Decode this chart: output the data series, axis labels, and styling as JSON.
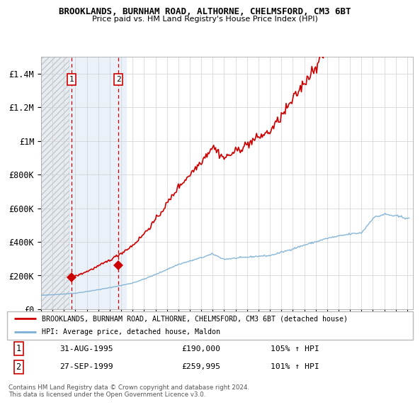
{
  "title1": "BROOKLANDS, BURNHAM ROAD, ALTHORNE, CHELMSFORD, CM3 6BT",
  "title2": "Price paid vs. HM Land Registry's House Price Index (HPI)",
  "ylim": [
    0,
    1500000
  ],
  "yticks": [
    0,
    200000,
    400000,
    600000,
    800000,
    1000000,
    1200000,
    1400000
  ],
  "ytick_labels": [
    "£0",
    "£200K",
    "£400K",
    "£600K",
    "£800K",
    "£1M",
    "£1.2M",
    "£1.4M"
  ],
  "sale1_x": 1995.67,
  "sale1_price": 190000,
  "sale2_x": 1999.75,
  "sale2_price": 259995,
  "property_color": "#cc0000",
  "hpi_color": "#7bafd4",
  "legend_property": "BROOKLANDS, BURNHAM ROAD, ALTHORNE, CHELMSFORD, CM3 6BT (detached house)",
  "legend_hpi": "HPI: Average price, detached house, Maldon",
  "table_row1": [
    "1",
    "31-AUG-1995",
    "£190,000",
    "105% ↑ HPI"
  ],
  "table_row2": [
    "2",
    "27-SEP-1999",
    "£259,995",
    "101% ↑ HPI"
  ],
  "footnote": "Contains HM Land Registry data © Crown copyright and database right 2024.\nThis data is licensed under the Open Government Licence v3.0.",
  "hatch_end": 1995.5,
  "blue_end": 2000.5,
  "xmin": 1993.0,
  "xmax": 2025.5
}
